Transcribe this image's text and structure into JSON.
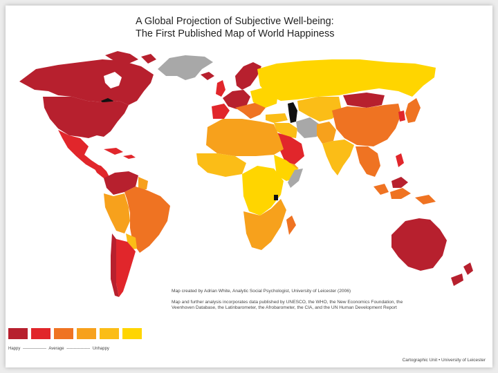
{
  "title": {
    "line1": "A Global Projection of Subjective Well-being:",
    "line2": "The First Published Map of World Happiness"
  },
  "colors": {
    "happiest": "#b7202e",
    "very_happy": "#e1262b",
    "happy": "#ef7322",
    "average": "#f7a11c",
    "less_happy": "#fbbd17",
    "unhappy": "#ffd500",
    "no_data": "#a8a8a8",
    "water": "#ffffff",
    "lakes": "#111111"
  },
  "legend": {
    "swatches": [
      "#b7202e",
      "#e1262b",
      "#ef7322",
      "#f7a11c",
      "#fbbd17",
      "#ffd500"
    ],
    "happy_label": "Happy",
    "dash1": "-----------------",
    "average_label": "Average",
    "dash2": "-----------------",
    "unhappy_label": "Unhappy"
  },
  "credit": {
    "line1": "Map created by Adrian White, Analytic Social Psychologist, University of Leicester (2006)",
    "line2": "Map and further analysis incorporates data published by UNESCO, the WHO, the New Economics Foundation, the Veenhoven Database, the Latinbarometer, the Afrobarometer, the CIA, and the UN Human Development Report"
  },
  "footer": "Cartographic Unit  •  University of Leicester"
}
